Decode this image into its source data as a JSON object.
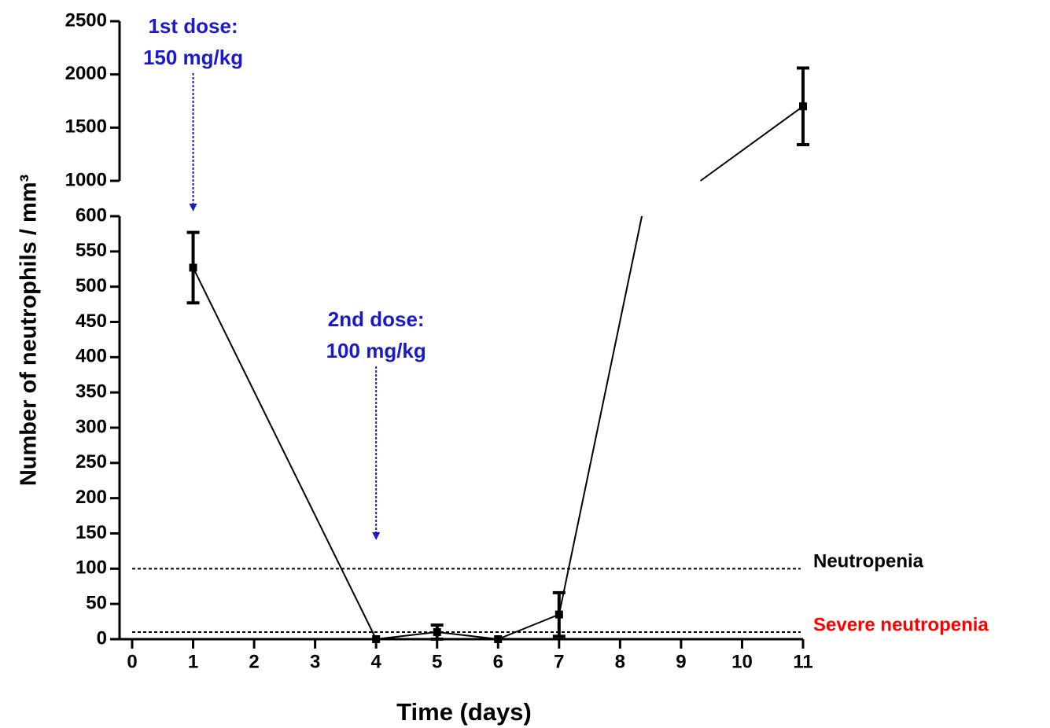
{
  "chart_data": {
    "type": "line",
    "x_label": "Time (days)",
    "y_label": "Number of neutrophils / mm³",
    "x": [
      1,
      4,
      5,
      6,
      7,
      11
    ],
    "series": [
      {
        "color": "#000000",
        "values": [
          527,
          0,
          10,
          0,
          35,
          1700
        ],
        "errors": [
          50,
          null,
          10,
          null,
          31,
          360
        ]
      }
    ],
    "xlim": [
      0,
      11
    ],
    "xticks": [
      0,
      1,
      2,
      3,
      4,
      5,
      6,
      7,
      8,
      9,
      10,
      11
    ],
    "ylim": [
      0,
      2500
    ],
    "ybreak": [
      600,
      1000
    ],
    "yticks": [
      0,
      50,
      100,
      150,
      200,
      250,
      300,
      350,
      400,
      450,
      500,
      550,
      600,
      1000,
      1500,
      2000,
      2500
    ],
    "reference_lines": [
      {
        "value": 100,
        "label": "Neutropenia",
        "color": "#000000"
      },
      {
        "value": 10,
        "label": "Severe neutropenia",
        "color": "#ff0000"
      }
    ],
    "annotations": [
      {
        "lines": [
          "1st dose:",
          "150 mg/kg"
        ],
        "x": 1,
        "color": "#1a1acc"
      },
      {
        "lines": [
          "2nd dose:",
          "100 mg/kg"
        ],
        "x": 4,
        "color": "#1a1acc"
      }
    ]
  }
}
